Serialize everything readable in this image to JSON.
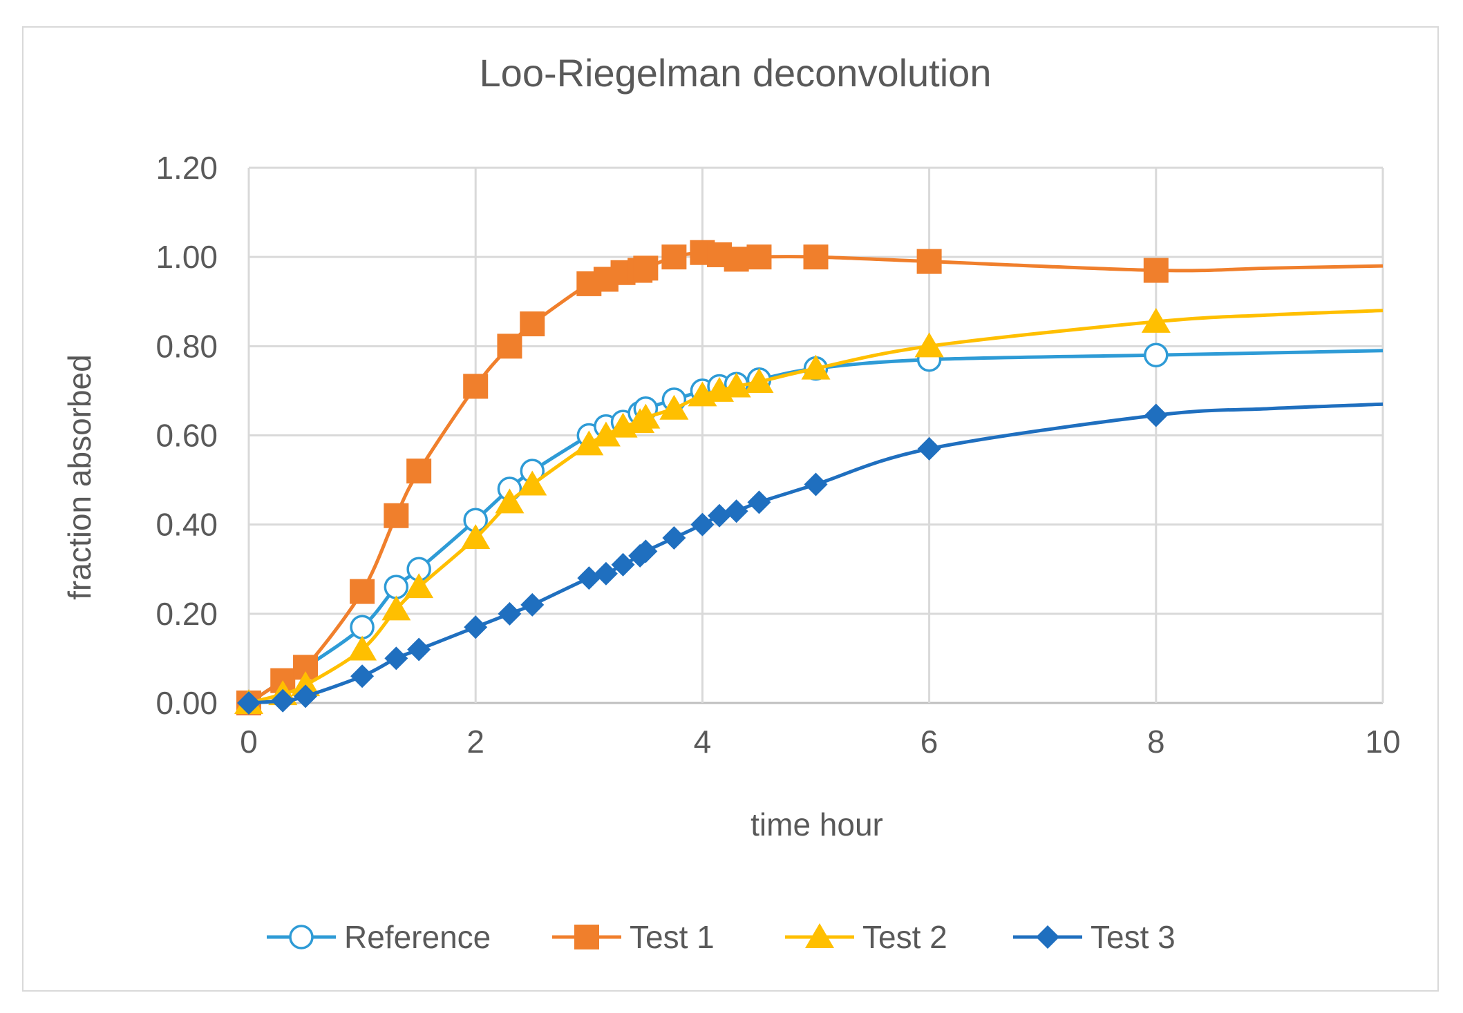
{
  "chart_data": {
    "type": "line",
    "title": "Loo-Riegelman deconvolution",
    "xlabel": "time hour",
    "ylabel": "fraction absorbed",
    "xlim": [
      0,
      10
    ],
    "ylim": [
      0,
      1.2
    ],
    "x_ticks": [
      0,
      2,
      4,
      6,
      8,
      10
    ],
    "x_tick_labels": [
      "0",
      "2",
      "4",
      "6",
      "8",
      "10"
    ],
    "y_ticks": [
      0,
      0.2,
      0.4,
      0.6,
      0.8,
      1.0,
      1.2
    ],
    "y_tick_labels": [
      "0.00",
      "0.20",
      "0.40",
      "0.60",
      "0.80",
      "1.00",
      "1.20"
    ],
    "grid": true,
    "legend_position": "bottom",
    "series": [
      {
        "name": "Reference",
        "color": "#2e9bd6",
        "marker": "open-circle",
        "x": [
          0,
          0.3,
          0.5,
          1,
          1.3,
          1.5,
          2,
          2.3,
          2.5,
          3,
          3.15,
          3.3,
          3.45,
          3.5,
          3.75,
          4,
          4.15,
          4.3,
          4.5,
          5,
          6,
          8
        ],
        "y": [
          0.0,
          0.05,
          0.08,
          0.17,
          0.26,
          0.3,
          0.41,
          0.48,
          0.52,
          0.6,
          0.62,
          0.63,
          0.65,
          0.66,
          0.68,
          0.7,
          0.71,
          0.715,
          0.725,
          0.75,
          0.77,
          0.78
        ],
        "tail": [
          [
            9,
            0.785
          ],
          [
            10,
            0.79
          ]
        ]
      },
      {
        "name": "Test 1",
        "color": "#f07f2c",
        "marker": "square",
        "x": [
          0,
          0.3,
          0.5,
          1,
          1.3,
          1.5,
          2,
          2.3,
          2.5,
          3,
          3.15,
          3.3,
          3.45,
          3.5,
          3.75,
          4,
          4.15,
          4.3,
          4.5,
          5,
          6,
          8
        ],
        "y": [
          0.0,
          0.05,
          0.08,
          0.25,
          0.42,
          0.52,
          0.71,
          0.8,
          0.85,
          0.94,
          0.95,
          0.965,
          0.97,
          0.975,
          1.0,
          1.01,
          1.005,
          0.995,
          1.0,
          1.0,
          0.99,
          0.97
        ],
        "tail": [
          [
            9,
            0.975
          ],
          [
            10,
            0.98
          ]
        ]
      },
      {
        "name": "Test 2",
        "color": "#ffbf00",
        "marker": "triangle",
        "x": [
          0,
          0.3,
          0.5,
          1,
          1.3,
          1.5,
          2,
          2.3,
          2.5,
          3,
          3.15,
          3.3,
          3.45,
          3.5,
          3.75,
          4,
          4.15,
          4.3,
          4.5,
          5,
          6,
          8
        ],
        "y": [
          0.0,
          0.02,
          0.04,
          0.12,
          0.21,
          0.26,
          0.37,
          0.45,
          0.49,
          0.58,
          0.6,
          0.62,
          0.63,
          0.64,
          0.66,
          0.69,
          0.7,
          0.71,
          0.72,
          0.75,
          0.8,
          0.855
        ],
        "tail": [
          [
            9,
            0.87
          ],
          [
            10,
            0.88
          ]
        ]
      },
      {
        "name": "Test 3",
        "color": "#1f6fbf",
        "marker": "diamond",
        "x": [
          0,
          0.3,
          0.5,
          1,
          1.3,
          1.5,
          2,
          2.3,
          2.5,
          3,
          3.15,
          3.3,
          3.45,
          3.5,
          3.75,
          4,
          4.15,
          4.3,
          4.5,
          5,
          6,
          8
        ],
        "y": [
          0.0,
          0.005,
          0.015,
          0.06,
          0.1,
          0.12,
          0.17,
          0.2,
          0.22,
          0.28,
          0.29,
          0.31,
          0.33,
          0.34,
          0.37,
          0.4,
          0.42,
          0.43,
          0.45,
          0.49,
          0.57,
          0.645
        ],
        "tail": [
          [
            9,
            0.66
          ],
          [
            10,
            0.67
          ]
        ]
      }
    ]
  }
}
